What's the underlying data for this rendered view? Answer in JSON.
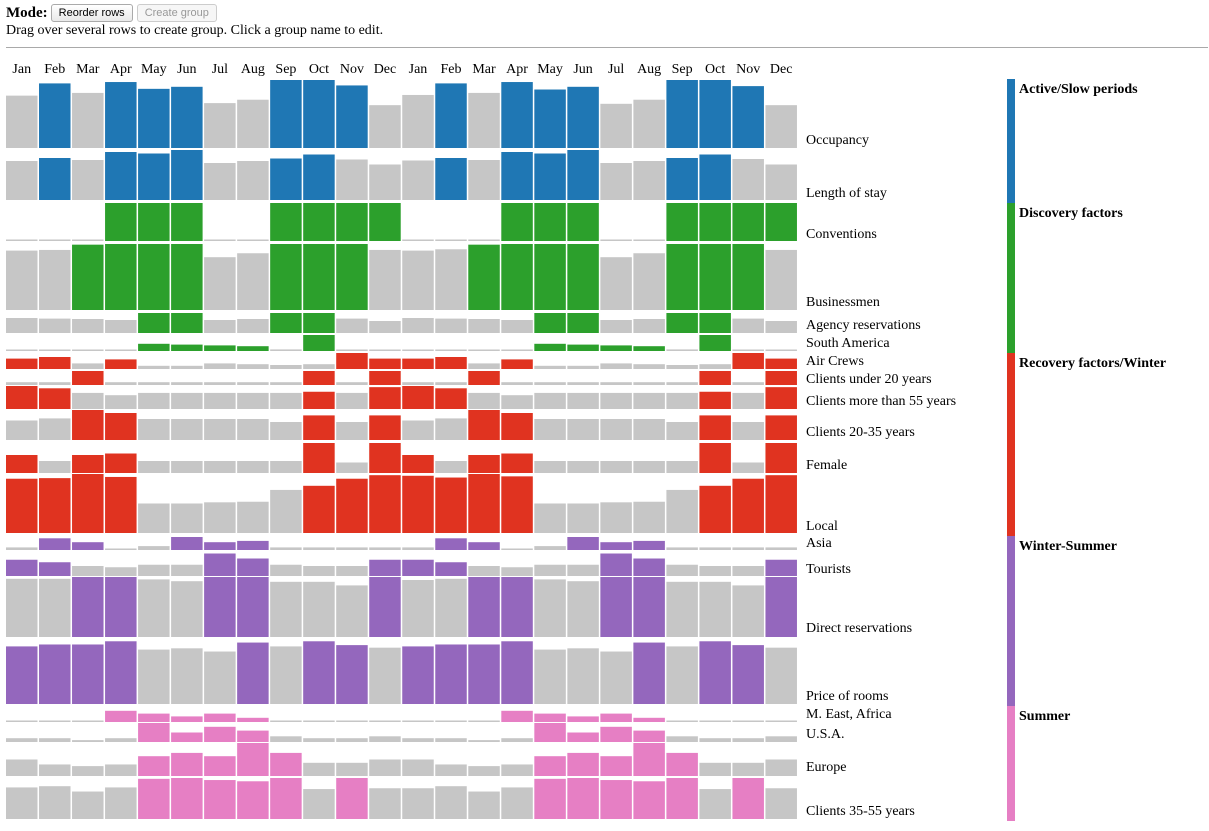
{
  "toolbar": {
    "mode_label": "Mode:",
    "reorder_button": "Reorder rows",
    "create_group_button": "Create group"
  },
  "instructions": "Drag over several rows to create group. Click a group name to edit.",
  "chart_data": {
    "type": "bar",
    "categories": [
      "Jan",
      "Feb",
      "Mar",
      "Apr",
      "May",
      "Jun",
      "Jul",
      "Aug",
      "Sep",
      "Oct",
      "Nov",
      "Dec",
      "Jan",
      "Feb",
      "Mar",
      "Apr",
      "May",
      "Jun",
      "Jul",
      "Aug",
      "Sep",
      "Oct",
      "Nov",
      "Dec"
    ],
    "groups": [
      {
        "name": "Active/Slow periods",
        "color": "#1f77b4"
      },
      {
        "name": "Discovery factors",
        "color": "#2ca02c"
      },
      {
        "name": "Recovery factors/Winter",
        "color": "#e03320"
      },
      {
        "name": "Winter-Summer",
        "color": "#9467bd"
      },
      {
        "name": "Summer",
        "color": "#e67fc4"
      }
    ],
    "neutral_color": "#c6c6c6",
    "rows": [
      {
        "name": "Occupancy",
        "group": 0,
        "values": [
          0.77,
          0.95,
          0.81,
          0.97,
          0.87,
          0.9,
          0.66,
          0.71,
          1.0,
          1.0,
          0.92,
          0.63,
          0.78,
          0.95,
          0.81,
          0.97,
          0.86,
          0.9,
          0.65,
          0.71,
          1.0,
          1.0,
          0.91,
          0.63
        ],
        "highlight": [
          0,
          1,
          0,
          1,
          1,
          1,
          0,
          0,
          1,
          1,
          1,
          0,
          0,
          1,
          0,
          1,
          1,
          1,
          0,
          0,
          1,
          1,
          1,
          0
        ]
      },
      {
        "name": "Length of stay",
        "group": 0,
        "values": [
          0.78,
          0.84,
          0.8,
          0.96,
          0.93,
          1.0,
          0.74,
          0.78,
          0.83,
          0.91,
          0.81,
          0.71,
          0.79,
          0.84,
          0.8,
          0.96,
          0.93,
          1.0,
          0.74,
          0.78,
          0.84,
          0.91,
          0.82,
          0.71
        ],
        "highlight": [
          0,
          1,
          0,
          1,
          1,
          1,
          0,
          0,
          1,
          1,
          0,
          0,
          0,
          1,
          0,
          1,
          1,
          1,
          0,
          0,
          1,
          1,
          0,
          0
        ]
      },
      {
        "name": "Conventions",
        "group": 1,
        "values": [
          0,
          0,
          0,
          1,
          1,
          1,
          0,
          0,
          1,
          1,
          1,
          1,
          0,
          0,
          0,
          1,
          1,
          1,
          0,
          0,
          1,
          1,
          1,
          1
        ],
        "highlight": [
          0,
          0,
          0,
          1,
          1,
          1,
          0,
          0,
          1,
          1,
          1,
          1,
          0,
          0,
          0,
          1,
          1,
          1,
          0,
          0,
          1,
          1,
          1,
          1
        ]
      },
      {
        "name": "Businessmen",
        "group": 1,
        "values": [
          0.9,
          0.91,
          0.99,
          1.0,
          1.0,
          1.0,
          0.8,
          0.86,
          1.0,
          1.0,
          1.0,
          0.91,
          0.9,
          0.92,
          0.99,
          1.0,
          1.0,
          1.0,
          0.8,
          0.86,
          1.0,
          1.0,
          1.0,
          0.91
        ],
        "highlight": [
          0,
          0,
          1,
          1,
          1,
          1,
          0,
          0,
          1,
          1,
          1,
          0,
          0,
          0,
          1,
          1,
          1,
          1,
          0,
          0,
          1,
          1,
          1,
          0
        ]
      },
      {
        "name": "Agency reservations",
        "group": 1,
        "values": [
          0.75,
          0.72,
          0.7,
          0.65,
          1.0,
          1.0,
          0.65,
          0.7,
          1.0,
          1.0,
          0.72,
          0.6,
          0.75,
          0.72,
          0.7,
          0.65,
          1.0,
          1.0,
          0.65,
          0.7,
          1.0,
          1.0,
          0.72,
          0.6
        ],
        "highlight": [
          0,
          0,
          0,
          0,
          1,
          1,
          0,
          0,
          1,
          1,
          0,
          0,
          0,
          0,
          0,
          0,
          1,
          1,
          0,
          0,
          1,
          1,
          0,
          0
        ]
      },
      {
        "name": "South America",
        "group": 1,
        "values": [
          0,
          0,
          0,
          0,
          0.45,
          0.4,
          0.35,
          0.3,
          0.1,
          1.0,
          0,
          0,
          0,
          0,
          0,
          0,
          0.45,
          0.4,
          0.35,
          0.3,
          0.1,
          1.0,
          0,
          0
        ],
        "highlight": [
          0,
          0,
          0,
          0,
          1,
          1,
          1,
          1,
          0,
          1,
          0,
          0,
          0,
          0,
          0,
          0,
          1,
          1,
          1,
          1,
          0,
          1,
          0,
          0
        ]
      },
      {
        "name": "Air Crews",
        "group": 2,
        "values": [
          0.65,
          0.75,
          0.35,
          0.6,
          0.2,
          0.2,
          0.35,
          0.3,
          0.25,
          0.3,
          1.0,
          0.65,
          0.65,
          0.75,
          0.35,
          0.6,
          0.2,
          0.2,
          0.35,
          0.3,
          0.25,
          0.3,
          1.0,
          0.65
        ],
        "highlight": [
          1,
          1,
          0,
          1,
          0,
          0,
          0,
          0,
          0,
          0,
          1,
          1,
          1,
          1,
          0,
          1,
          0,
          0,
          0,
          0,
          0,
          0,
          1,
          1
        ]
      },
      {
        "name": "Clients under 20 years",
        "group": 2,
        "values": [
          0.2,
          0.2,
          1.0,
          0.2,
          0.2,
          0.2,
          0.2,
          0.2,
          0.2,
          1.0,
          0.2,
          1.0,
          0.2,
          0.2,
          1.0,
          0.2,
          0.2,
          0.2,
          0.2,
          0.2,
          0.2,
          1.0,
          0.2,
          1.0
        ],
        "highlight": [
          0,
          0,
          1,
          0,
          0,
          0,
          0,
          0,
          0,
          1,
          0,
          1,
          0,
          0,
          1,
          0,
          0,
          0,
          0,
          0,
          0,
          1,
          0,
          1
        ]
      },
      {
        "name": "Clients more than 55 years",
        "group": 2,
        "values": [
          1.0,
          0.9,
          0.7,
          0.6,
          0.7,
          0.7,
          0.7,
          0.7,
          0.7,
          0.75,
          0.7,
          0.95,
          1.0,
          0.9,
          0.7,
          0.6,
          0.7,
          0.7,
          0.7,
          0.7,
          0.7,
          0.75,
          0.7,
          0.95
        ],
        "highlight": [
          1,
          1,
          0,
          0,
          0,
          0,
          0,
          0,
          0,
          1,
          0,
          1,
          1,
          1,
          0,
          0,
          0,
          0,
          0,
          0,
          0,
          1,
          0,
          1
        ]
      },
      {
        "name": "Clients 20-35 years",
        "group": 2,
        "values": [
          0.65,
          0.72,
          1.0,
          0.9,
          0.7,
          0.7,
          0.7,
          0.7,
          0.6,
          0.82,
          0.6,
          0.82,
          0.65,
          0.72,
          1.0,
          0.9,
          0.7,
          0.7,
          0.7,
          0.7,
          0.6,
          0.82,
          0.6,
          0.82
        ],
        "highlight": [
          0,
          0,
          1,
          1,
          0,
          0,
          0,
          0,
          0,
          1,
          0,
          1,
          0,
          0,
          1,
          1,
          0,
          0,
          0,
          0,
          0,
          1,
          0,
          1
        ]
      },
      {
        "name": "Female",
        "group": 2,
        "values": [
          0.6,
          0.4,
          0.6,
          0.65,
          0.4,
          0.4,
          0.4,
          0.4,
          0.4,
          1.0,
          0.35,
          1.0,
          0.6,
          0.4,
          0.6,
          0.65,
          0.4,
          0.4,
          0.4,
          0.4,
          0.4,
          1.0,
          0.35,
          1.0
        ],
        "highlight": [
          1,
          0,
          1,
          1,
          0,
          0,
          0,
          0,
          0,
          1,
          0,
          1,
          1,
          0,
          1,
          1,
          0,
          0,
          0,
          0,
          0,
          1,
          0,
          1
        ]
      },
      {
        "name": "Local",
        "group": 2,
        "values": [
          0.92,
          0.93,
          1.0,
          0.95,
          0.5,
          0.5,
          0.52,
          0.53,
          0.73,
          0.8,
          0.92,
          0.98,
          0.97,
          0.94,
          1.0,
          0.96,
          0.5,
          0.5,
          0.52,
          0.53,
          0.73,
          0.8,
          0.92,
          0.98
        ],
        "highlight": [
          1,
          1,
          1,
          1,
          0,
          0,
          0,
          0,
          0,
          1,
          1,
          1,
          1,
          1,
          1,
          1,
          0,
          0,
          0,
          0,
          0,
          1,
          1,
          1
        ]
      },
      {
        "name": "Asia",
        "group": 3,
        "values": [
          0.2,
          0.9,
          0.6,
          0.1,
          0.3,
          1.0,
          0.6,
          0.7,
          0.2,
          0.2,
          0.2,
          0.2,
          0.2,
          0.9,
          0.6,
          0.1,
          0.3,
          1.0,
          0.6,
          0.7,
          0.2,
          0.2,
          0.2,
          0.2
        ],
        "highlight": [
          0,
          1,
          1,
          0,
          0,
          1,
          1,
          1,
          0,
          0,
          0,
          0,
          0,
          1,
          1,
          0,
          0,
          1,
          1,
          1,
          0,
          0,
          0,
          0
        ]
      },
      {
        "name": "Tourists",
        "group": 3,
        "values": [
          0.65,
          0.55,
          0.4,
          0.35,
          0.45,
          0.45,
          0.9,
          0.7,
          0.45,
          0.4,
          0.4,
          0.65,
          0.65,
          0.55,
          0.4,
          0.35,
          0.45,
          0.45,
          0.9,
          0.7,
          0.45,
          0.4,
          0.4,
          0.65
        ],
        "highlight": [
          1,
          1,
          0,
          0,
          0,
          0,
          1,
          1,
          0,
          0,
          0,
          1,
          1,
          1,
          0,
          0,
          0,
          0,
          1,
          1,
          0,
          0,
          0,
          1
        ]
      },
      {
        "name": "Direct reservations",
        "group": 3,
        "values": [
          0.97,
          0.97,
          1.0,
          1.0,
          0.96,
          0.93,
          1.0,
          1.0,
          0.92,
          0.92,
          0.86,
          1.0,
          0.95,
          0.97,
          1.0,
          1.0,
          0.96,
          0.93,
          1.0,
          1.0,
          0.92,
          0.92,
          0.86,
          1.0
        ],
        "highlight": [
          0,
          0,
          1,
          1,
          0,
          0,
          1,
          1,
          0,
          0,
          0,
          1,
          0,
          0,
          1,
          1,
          0,
          0,
          1,
          1,
          0,
          0,
          0,
          1
        ]
      },
      {
        "name": "Price of rooms",
        "group": 3,
        "values": [
          0.9,
          0.93,
          0.93,
          0.98,
          0.85,
          0.87,
          0.82,
          0.96,
          0.9,
          0.98,
          0.92,
          0.88,
          0.9,
          0.93,
          0.93,
          0.98,
          0.85,
          0.87,
          0.82,
          0.96,
          0.9,
          0.98,
          0.92,
          0.88
        ],
        "highlight": [
          1,
          1,
          1,
          1,
          0,
          0,
          0,
          1,
          0,
          1,
          1,
          0,
          1,
          1,
          1,
          1,
          0,
          0,
          0,
          1,
          0,
          1,
          1,
          0
        ]
      },
      {
        "name": "M. East, Africa",
        "group": 4,
        "values": [
          0.1,
          0.1,
          0.1,
          0.8,
          0.6,
          0.4,
          0.6,
          0.3,
          0.1,
          0.1,
          0.1,
          0.1,
          0.1,
          0.1,
          0.1,
          0.8,
          0.6,
          0.4,
          0.6,
          0.3,
          0.1,
          0.1,
          0.1,
          0.1
        ],
        "highlight": [
          0,
          0,
          0,
          1,
          1,
          1,
          1,
          1,
          0,
          0,
          0,
          0,
          0,
          0,
          0,
          1,
          1,
          1,
          1,
          1,
          0,
          0,
          0,
          0
        ]
      },
      {
        "name": "U.S.A.",
        "group": 4,
        "values": [
          0.2,
          0.2,
          0.1,
          0.2,
          1.0,
          0.5,
          0.8,
          0.6,
          0.3,
          0.2,
          0.2,
          0.3,
          0.2,
          0.2,
          0.1,
          0.2,
          1.0,
          0.5,
          0.8,
          0.6,
          0.3,
          0.2,
          0.2,
          0.3
        ],
        "highlight": [
          0,
          0,
          0,
          0,
          1,
          1,
          1,
          1,
          0,
          0,
          0,
          0,
          0,
          0,
          0,
          0,
          1,
          1,
          1,
          1,
          0,
          0,
          0,
          0
        ]
      },
      {
        "name": "Europe",
        "group": 4,
        "values": [
          0.5,
          0.35,
          0.3,
          0.35,
          0.6,
          0.7,
          0.6,
          1.0,
          0.7,
          0.4,
          0.4,
          0.5,
          0.5,
          0.35,
          0.3,
          0.35,
          0.6,
          0.7,
          0.6,
          1.0,
          0.7,
          0.4,
          0.4,
          0.5
        ],
        "highlight": [
          0,
          0,
          0,
          0,
          1,
          1,
          1,
          1,
          1,
          0,
          0,
          0,
          0,
          0,
          0,
          0,
          1,
          1,
          1,
          1,
          1,
          0,
          0,
          0
        ]
      },
      {
        "name": "Clients 35-55 years",
        "group": 4,
        "values": [
          0.77,
          0.8,
          0.67,
          0.77,
          0.98,
          1.0,
          0.95,
          0.92,
          1.0,
          0.73,
          1.0,
          0.75,
          0.75,
          0.8,
          0.67,
          0.77,
          0.98,
          1.0,
          0.95,
          0.92,
          1.0,
          0.73,
          1.0,
          0.75
        ],
        "highlight": [
          0,
          0,
          0,
          0,
          1,
          1,
          1,
          1,
          1,
          0,
          1,
          0,
          0,
          0,
          0,
          0,
          1,
          1,
          1,
          1,
          1,
          0,
          1,
          0
        ]
      }
    ]
  }
}
